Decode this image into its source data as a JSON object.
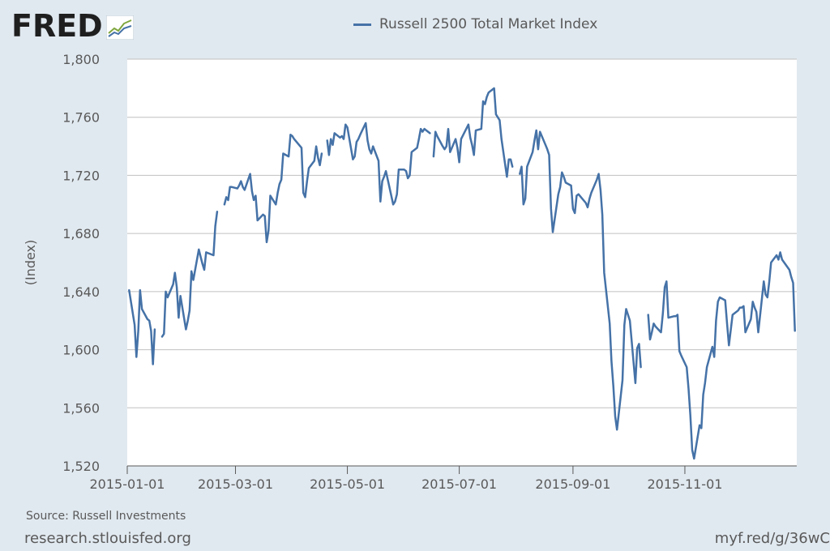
{
  "header": {
    "logo_text": "FRED",
    "logo_icon": "chart-line-icon",
    "legend_label": "Russell 2500 Total Market Index"
  },
  "footer": {
    "source": "Source: Russell Investments",
    "site": "research.stlouisfed.org",
    "short_url": "myf.red/g/36wC"
  },
  "colors": {
    "series": "#4572a7",
    "plot_bg": "#ffffff",
    "page_bg": "#e1e9f0",
    "grid": "#c0c0c0"
  },
  "chart_data": {
    "type": "line",
    "title": "",
    "xlabel": "",
    "ylabel": "(Index)",
    "ylim": [
      1520,
      1800
    ],
    "yticks": [
      1520,
      1560,
      1600,
      1640,
      1680,
      1720,
      1760,
      1800
    ],
    "ytick_labels": [
      "1,520",
      "1,560",
      "1,600",
      "1,640",
      "1,680",
      "1,720",
      "1,760",
      "1,800"
    ],
    "xlim": [
      "2015-01-01",
      "2015-12-31"
    ],
    "xticks": [
      "2015-01-01",
      "2015-03-01",
      "2015-05-01",
      "2015-07-01",
      "2015-09-01",
      "2015-11-01"
    ],
    "grid": true,
    "legend": "top-center",
    "series": [
      {
        "name": "Russell 2500 Total Market Index",
        "color": "#4572a7",
        "points": [
          [
            "2015-01-02",
            1641
          ],
          [
            "2015-01-05",
            1617
          ],
          [
            "2015-01-06",
            1595
          ],
          [
            "2015-01-07",
            1613
          ],
          [
            "2015-01-08",
            1641
          ],
          [
            "2015-01-09",
            1628
          ],
          [
            "2015-01-12",
            1621
          ],
          [
            "2015-01-13",
            1620
          ],
          [
            "2015-01-14",
            1613
          ],
          [
            "2015-01-15",
            1590
          ],
          [
            "2015-01-16",
            1614
          ],
          null,
          [
            "2015-01-20",
            1609
          ],
          [
            "2015-01-21",
            1611
          ],
          [
            "2015-01-22",
            1640
          ],
          [
            "2015-01-23",
            1636
          ],
          [
            "2015-01-26",
            1645
          ],
          [
            "2015-01-27",
            1653
          ],
          [
            "2015-01-28",
            1643
          ],
          [
            "2015-01-29",
            1622
          ],
          [
            "2015-01-30",
            1637
          ],
          [
            "2015-02-02",
            1614
          ],
          [
            "2015-02-03",
            1620
          ],
          [
            "2015-02-04",
            1627
          ],
          [
            "2015-02-05",
            1654
          ],
          [
            "2015-02-06",
            1648
          ],
          [
            "2015-02-09",
            1669
          ],
          [
            "2015-02-10",
            1664
          ],
          [
            "2015-02-11",
            1659
          ],
          [
            "2015-02-12",
            1655
          ],
          [
            "2015-02-13",
            1667
          ],
          [
            "2015-02-17",
            1665
          ],
          [
            "2015-02-18",
            1685
          ],
          [
            "2015-02-19",
            1695
          ],
          null,
          [
            "2015-02-23",
            1700
          ],
          [
            "2015-02-24",
            1705
          ],
          [
            "2015-02-25",
            1703
          ],
          [
            "2015-02-26",
            1712
          ],
          [
            "2015-02-27",
            1712
          ],
          [
            "2015-03-02",
            1711
          ],
          [
            "2015-03-03",
            1713
          ],
          [
            "2015-03-04",
            1716
          ],
          [
            "2015-03-05",
            1712
          ],
          [
            "2015-03-06",
            1710
          ],
          [
            "2015-03-09",
            1721
          ],
          [
            "2015-03-10",
            1709
          ],
          [
            "2015-03-11",
            1703
          ],
          [
            "2015-03-12",
            1706
          ],
          [
            "2015-03-13",
            1689
          ],
          [
            "2015-03-16",
            1693
          ],
          [
            "2015-03-17",
            1692
          ],
          [
            "2015-03-18",
            1674
          ],
          [
            "2015-03-19",
            1682
          ],
          [
            "2015-03-20",
            1706
          ],
          [
            "2015-03-23",
            1700
          ],
          [
            "2015-03-24",
            1708
          ],
          [
            "2015-03-25",
            1714
          ],
          [
            "2015-03-26",
            1717
          ],
          [
            "2015-03-27",
            1735
          ],
          [
            "2015-03-30",
            1733
          ],
          [
            "2015-03-31",
            1748
          ],
          [
            "2015-04-01",
            1747
          ],
          [
            "2015-04-02",
            1745
          ],
          [
            "2015-04-06",
            1739
          ],
          [
            "2015-04-07",
            1708
          ],
          [
            "2015-04-08",
            1705
          ],
          [
            "2015-04-09",
            1716
          ],
          [
            "2015-04-10",
            1725
          ],
          [
            "2015-04-13",
            1730
          ],
          [
            "2015-04-14",
            1740
          ],
          [
            "2015-04-15",
            1732
          ],
          [
            "2015-04-16",
            1727
          ],
          [
            "2015-04-17",
            1735
          ],
          null,
          [
            "2015-04-20",
            1744
          ],
          [
            "2015-04-21",
            1734
          ],
          [
            "2015-04-22",
            1745
          ],
          [
            "2015-04-23",
            1741
          ],
          [
            "2015-04-24",
            1749
          ],
          [
            "2015-04-27",
            1746
          ],
          [
            "2015-04-28",
            1747
          ],
          [
            "2015-04-29",
            1745
          ],
          [
            "2015-04-30",
            1755
          ],
          [
            "2015-05-01",
            1753
          ],
          [
            "2015-05-04",
            1731
          ],
          [
            "2015-05-05",
            1733
          ],
          [
            "2015-05-06",
            1743
          ],
          [
            "2015-05-07",
            1745
          ],
          [
            "2015-05-08",
            1748
          ],
          [
            "2015-05-11",
            1756
          ],
          [
            "2015-05-12",
            1744
          ],
          [
            "2015-05-13",
            1738
          ],
          [
            "2015-05-14",
            1735
          ],
          [
            "2015-05-15",
            1740
          ],
          [
            "2015-05-18",
            1730
          ],
          [
            "2015-05-19",
            1702
          ],
          [
            "2015-05-20",
            1716
          ],
          [
            "2015-05-21",
            1719
          ],
          [
            "2015-05-22",
            1723
          ],
          [
            "2015-05-26",
            1700
          ],
          [
            "2015-05-27",
            1702
          ],
          [
            "2015-05-28",
            1707
          ],
          [
            "2015-05-29",
            1724
          ],
          [
            "2015-06-01",
            1724
          ],
          [
            "2015-06-02",
            1723
          ],
          [
            "2015-06-03",
            1718
          ],
          [
            "2015-06-04",
            1720
          ],
          [
            "2015-06-05",
            1736
          ],
          [
            "2015-06-08",
            1739
          ],
          [
            "2015-06-09",
            1745
          ],
          [
            "2015-06-10",
            1752
          ],
          [
            "2015-06-11",
            1750
          ],
          [
            "2015-06-12",
            1752
          ],
          [
            "2015-06-15",
            1749
          ],
          null,
          [
            "2015-06-17",
            1733
          ],
          [
            "2015-06-18",
            1750
          ],
          [
            "2015-06-19",
            1747
          ],
          [
            "2015-06-22",
            1740
          ],
          [
            "2015-06-23",
            1738
          ],
          [
            "2015-06-24",
            1740
          ],
          [
            "2015-06-25",
            1752
          ],
          [
            "2015-06-26",
            1736
          ],
          [
            "2015-06-29",
            1745
          ],
          [
            "2015-06-30",
            1739
          ],
          [
            "2015-07-01",
            1729
          ],
          [
            "2015-07-02",
            1745
          ],
          [
            "2015-07-06",
            1755
          ],
          [
            "2015-07-07",
            1746
          ],
          [
            "2015-07-08",
            1741
          ],
          [
            "2015-07-09",
            1734
          ],
          [
            "2015-07-10",
            1751
          ],
          [
            "2015-07-13",
            1752
          ],
          [
            "2015-07-14",
            1771
          ],
          [
            "2015-07-15",
            1769
          ],
          [
            "2015-07-16",
            1774
          ],
          [
            "2015-07-17",
            1777
          ],
          [
            "2015-07-20",
            1780
          ],
          [
            "2015-07-21",
            1762
          ],
          [
            "2015-07-22",
            1760
          ],
          [
            "2015-07-23",
            1758
          ],
          [
            "2015-07-24",
            1745
          ],
          [
            "2015-07-27",
            1719
          ],
          [
            "2015-07-28",
            1731
          ],
          [
            "2015-07-29",
            1731
          ],
          [
            "2015-07-30",
            1726
          ],
          null,
          [
            "2015-08-03",
            1721
          ],
          [
            "2015-08-04",
            1726
          ],
          [
            "2015-08-05",
            1700
          ],
          [
            "2015-08-06",
            1704
          ],
          [
            "2015-08-07",
            1726
          ],
          [
            "2015-08-10",
            1736
          ],
          [
            "2015-08-11",
            1744
          ],
          [
            "2015-08-12",
            1751
          ],
          [
            "2015-08-13",
            1738
          ],
          [
            "2015-08-14",
            1750
          ],
          [
            "2015-08-17",
            1741
          ],
          [
            "2015-08-18",
            1738
          ],
          [
            "2015-08-19",
            1734
          ],
          [
            "2015-08-20",
            1697
          ],
          [
            "2015-08-21",
            1681
          ],
          [
            "2015-08-24",
            1707
          ],
          [
            "2015-08-25",
            1712
          ],
          [
            "2015-08-26",
            1722
          ],
          [
            "2015-08-27",
            1719
          ],
          [
            "2015-08-28",
            1715
          ],
          [
            "2015-08-31",
            1713
          ],
          [
            "2015-09-01",
            1697
          ],
          [
            "2015-09-02",
            1694
          ],
          [
            "2015-09-03",
            1706
          ],
          [
            "2015-09-04",
            1707
          ],
          [
            "2015-09-08",
            1701
          ],
          [
            "2015-09-09",
            1698
          ],
          [
            "2015-09-10",
            1704
          ],
          [
            "2015-09-11",
            1708
          ],
          [
            "2015-09-14",
            1717
          ],
          [
            "2015-09-15",
            1721
          ],
          [
            "2015-09-16",
            1710
          ],
          [
            "2015-09-17",
            1693
          ],
          [
            "2015-09-18",
            1653
          ],
          [
            "2015-09-21",
            1618
          ],
          [
            "2015-09-22",
            1592
          ],
          [
            "2015-09-23",
            1575
          ],
          [
            "2015-09-24",
            1554
          ],
          [
            "2015-09-25",
            1545
          ],
          [
            "2015-09-28",
            1579
          ],
          [
            "2015-09-29",
            1617
          ],
          [
            "2015-09-30",
            1628
          ],
          [
            "2015-10-01",
            1624
          ],
          [
            "2015-10-02",
            1620
          ],
          [
            "2015-10-05",
            1577
          ],
          [
            "2015-10-06",
            1601
          ],
          [
            "2015-10-07",
            1604
          ],
          [
            "2015-10-08",
            1588
          ],
          null,
          [
            "2015-10-12",
            1624
          ],
          [
            "2015-10-13",
            1607
          ],
          [
            "2015-10-14",
            1612
          ],
          [
            "2015-10-15",
            1618
          ],
          [
            "2015-10-16",
            1616
          ],
          [
            "2015-10-19",
            1612
          ],
          [
            "2015-10-20",
            1625
          ],
          [
            "2015-10-21",
            1643
          ],
          [
            "2015-10-22",
            1647
          ],
          [
            "2015-10-23",
            1622
          ],
          [
            "2015-10-26",
            1623
          ],
          [
            "2015-10-27",
            1623
          ],
          [
            "2015-10-28",
            1624
          ],
          [
            "2015-10-29",
            1599
          ],
          [
            "2015-10-30",
            1596
          ],
          [
            "2015-11-02",
            1588
          ],
          [
            "2015-11-03",
            1573
          ],
          [
            "2015-11-04",
            1555
          ],
          [
            "2015-11-05",
            1531
          ],
          [
            "2015-11-06",
            1525
          ],
          [
            "2015-11-09",
            1548
          ],
          [
            "2015-11-10",
            1546
          ],
          [
            "2015-11-11",
            1569
          ],
          [
            "2015-11-12",
            1577
          ],
          [
            "2015-11-13",
            1588
          ],
          [
            "2015-11-16",
            1602
          ],
          [
            "2015-11-17",
            1595
          ],
          [
            "2015-11-18",
            1620
          ],
          [
            "2015-11-19",
            1633
          ],
          [
            "2015-11-20",
            1636
          ],
          [
            "2015-11-23",
            1634
          ],
          [
            "2015-11-24",
            1618
          ],
          [
            "2015-11-25",
            1603
          ],
          [
            "2015-11-27",
            1624
          ],
          [
            "2015-11-30",
            1627
          ],
          [
            "2015-12-01",
            1629
          ],
          [
            "2015-12-02",
            1629
          ],
          [
            "2015-12-03",
            1630
          ],
          [
            "2015-12-04",
            1612
          ],
          [
            "2015-12-07",
            1621
          ],
          [
            "2015-12-08",
            1633
          ],
          [
            "2015-12-09",
            1629
          ],
          [
            "2015-12-10",
            1626
          ],
          [
            "2015-12-11",
            1612
          ],
          [
            "2015-12-14",
            1647
          ],
          [
            "2015-12-15",
            1638
          ],
          [
            "2015-12-16",
            1636
          ],
          [
            "2015-12-17",
            1647
          ],
          [
            "2015-12-18",
            1660
          ],
          [
            "2015-12-21",
            1665
          ],
          [
            "2015-12-22",
            1662
          ],
          [
            "2015-12-23",
            1667
          ],
          [
            "2015-12-24",
            1662
          ],
          [
            "2015-12-28",
            1655
          ],
          [
            "2015-12-29",
            1650
          ],
          [
            "2015-12-30",
            1646
          ],
          [
            "2015-12-31",
            1613
          ]
        ]
      }
    ]
  }
}
